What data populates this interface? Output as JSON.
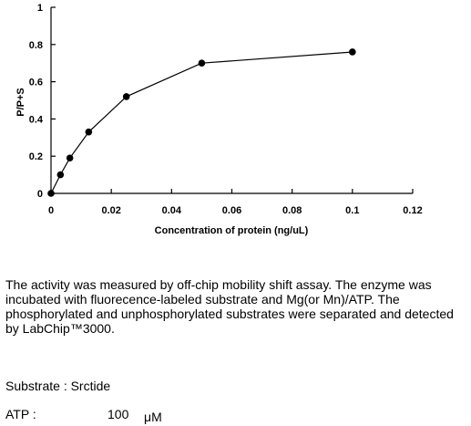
{
  "chart_data": {
    "type": "line",
    "xlabel": "Concentration of protein (ng/uL)",
    "ylabel": "P/P+S",
    "xlim": [
      0,
      0.12
    ],
    "ylim": [
      0,
      1
    ],
    "x_ticks": [
      "0",
      "0.02",
      "0.04",
      "0.06",
      "0.08",
      "0.1",
      "0.12"
    ],
    "y_ticks": [
      "0",
      "0.2",
      "0.4",
      "0.6",
      "0.8",
      "1"
    ],
    "series": [
      {
        "x": [
          0,
          0.003125,
          0.00625,
          0.0125,
          0.025,
          0.05,
          0.1
        ],
        "y": [
          0.0,
          0.1,
          0.19,
          0.33,
          0.52,
          0.7,
          0.76
        ]
      }
    ],
    "color": "#000000"
  },
  "description": "The activity was measured by off-chip mobility shift assay. The enzyme was incubated with fluorecence-labeled  substrate and Mg(or Mn)/ATP. The phosphorylated and unphosphorylated substrates were separated and detected by LabChip™3000.",
  "substrate": {
    "label": "Substrate : Srctide"
  },
  "atp": {
    "label": "ATP :",
    "value": "100",
    "unit": "μM"
  }
}
